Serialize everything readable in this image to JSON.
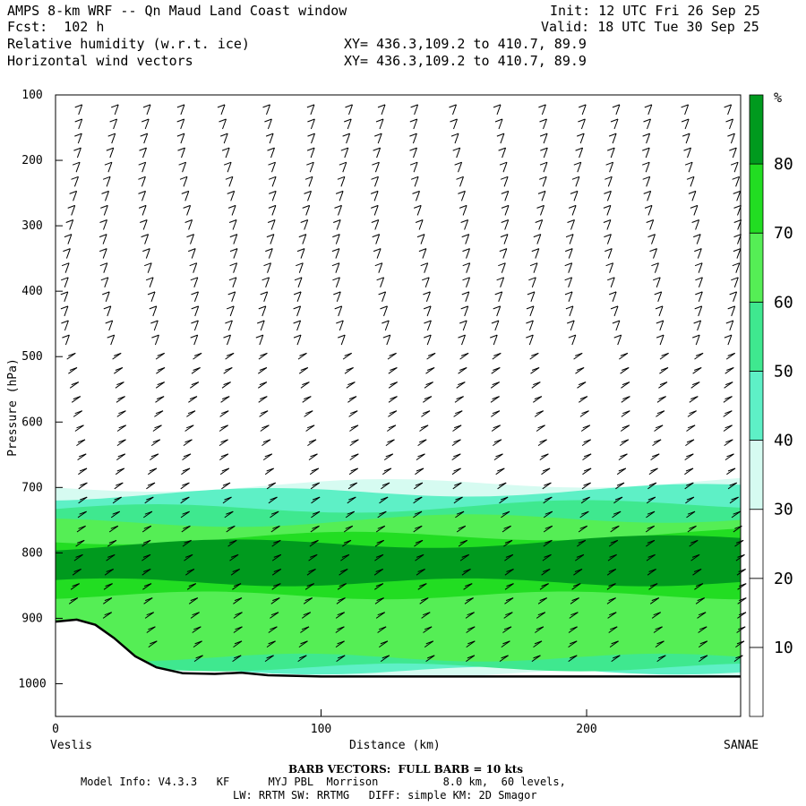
{
  "header": {
    "title": "AMPS 8-km WRF -- Qn Maud Land Coast window",
    "fcst": "Fcst:  102 h",
    "field1": "Relative humidity (w.r.t. ice)",
    "field2": "Horizontal wind vectors",
    "xy1": "XY= 436.3,109.2 to 410.7, 89.9",
    "xy2": "XY= 436.3,109.2 to 410.7, 89.9",
    "init": "Init: 12 UTC Fri 26 Sep 25",
    "valid": "Valid: 18 UTC Tue 30 Sep 25"
  },
  "axis_labels": {
    "ylabel": "Pressure (hPa)",
    "xlabel": "Distance (km)",
    "left_station": "Veslis",
    "right_station": "SANAE",
    "colorbar_unit": "%"
  },
  "footer": {
    "barb_note": "BARB VECTORS:  FULL BARB = 10 kts",
    "model_info": "Model Info: V4.3.3   KF      MYJ PBL  Morrison          8.0 km,  60 levels,",
    "model_info2": "LW: RRTM SW: RRTMG   DIFF: simple KM: 2D Smagor"
  },
  "colors": {
    "rh_30_40": "#d6fbf1",
    "rh_40_50": "#5ef0c6",
    "rh_50_60": "#3fe88f",
    "rh_60_70": "#55ee55",
    "rh_70_80": "#22dd22",
    "rh_80_plus": "#009a1e",
    "terrain_line": "#000000"
  },
  "chart_data": {
    "type": "cross-section",
    "x_axis": {
      "label": "Distance (km)",
      "range": [
        0,
        258
      ],
      "ticks": [
        "0",
        "100",
        "200"
      ]
    },
    "y_axis": {
      "label": "Pressure (hPa)",
      "range": [
        1050,
        100
      ],
      "ticks": [
        "100",
        "200",
        "300",
        "400",
        "500",
        "600",
        "700",
        "800",
        "900",
        "1000"
      ]
    },
    "colorbar": {
      "unit": "%",
      "levels": [
        "10",
        "20",
        "30",
        "40",
        "50",
        "60",
        "70",
        "80"
      ],
      "shaded_from": 30
    },
    "terrain_surface_hpa": [
      [
        0,
        905
      ],
      [
        8,
        902
      ],
      [
        15,
        910
      ],
      [
        22,
        930
      ],
      [
        30,
        958
      ],
      [
        38,
        975
      ],
      [
        48,
        984
      ],
      [
        60,
        985
      ],
      [
        70,
        983
      ],
      [
        80,
        987
      ],
      [
        100,
        989
      ],
      [
        150,
        989
      ],
      [
        200,
        989
      ],
      [
        258,
        989
      ]
    ],
    "rh_layers": [
      {
        "range": "30-40",
        "top_hpa": 700,
        "bottom_hpa": 985
      },
      {
        "range": "40-50",
        "top_hpa": 712,
        "bottom_hpa": 980
      },
      {
        "range": "50-60",
        "top_hpa": 735,
        "bottom_hpa": 975
      },
      {
        "range": "60-70",
        "top_hpa": 755,
        "bottom_hpa": 960
      },
      {
        "range": "70-80",
        "top_hpa": 780,
        "bottom_hpa": 865
      },
      {
        "range": "80+",
        "top_hpa": 790,
        "bottom_hpa": 845
      }
    ]
  }
}
